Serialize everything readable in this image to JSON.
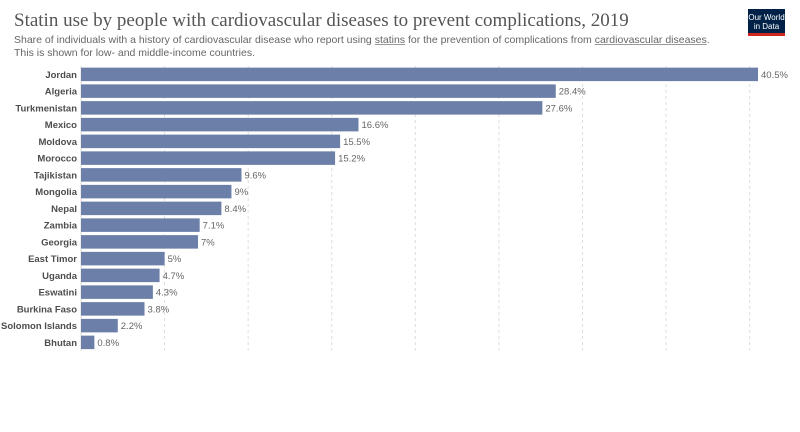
{
  "header": {
    "title": "Statin use by people with cardiovascular diseases to prevent complications, 2019",
    "subtitle_parts": [
      "Share of individuals with a history of cardiovascular disease who report using ",
      "statins",
      " for the prevention of complications from ",
      "cardiovascular diseases",
      ". This is shown for low- and middle-income countries."
    ],
    "logo_line1": "Our World",
    "logo_line2": "in Data"
  },
  "colors": {
    "bar": "#6b7fa8",
    "grid": "#dddddd",
    "text": "#4d4d4d",
    "logo_bg": "#002147",
    "logo_accent": "#ce261e"
  },
  "chart_data": {
    "type": "bar",
    "orientation": "horizontal",
    "categories": [
      "Jordan",
      "Algeria",
      "Turkmenistan",
      "Mexico",
      "Moldova",
      "Morocco",
      "Tajikistan",
      "Mongolia",
      "Nepal",
      "Zambia",
      "Georgia",
      "East Timor",
      "Uganda",
      "Eswatini",
      "Burkina Faso",
      "Solomon Islands",
      "Bhutan"
    ],
    "values": [
      40.5,
      28.4,
      27.6,
      16.6,
      15.5,
      15.2,
      9.6,
      9,
      8.4,
      7.1,
      7,
      5,
      4.7,
      4.3,
      3.8,
      2.2,
      0.8
    ],
    "value_labels": [
      "40.5%",
      "28.4%",
      "27.6%",
      "16.6%",
      "15.5%",
      "15.2%",
      "9.6%",
      "9%",
      "8.4%",
      "7.1%",
      "7%",
      "5%",
      "4.7%",
      "4.3%",
      "3.8%",
      "2.2%",
      "0.8%"
    ],
    "xlim": [
      0,
      40.5
    ],
    "gridlines": [
      0,
      5,
      10,
      15,
      20,
      25,
      30,
      35,
      40
    ],
    "grid": true
  }
}
